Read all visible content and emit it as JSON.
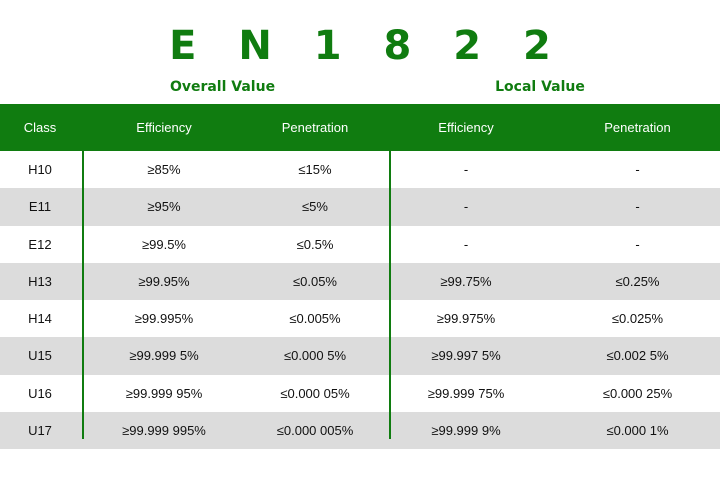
{
  "title": "E N 1 8 2 2",
  "groups": {
    "overall": "Overall Value",
    "local": "Local Value"
  },
  "headers": {
    "class": "Class",
    "overall_efficiency": "Efficiency",
    "overall_penetration": "Penetration",
    "local_efficiency": "Efficiency",
    "local_penetration": "Penetration"
  },
  "rows": [
    {
      "class": "H10",
      "overall_efficiency": "≥85%",
      "overall_penetration": "≤15%",
      "local_efficiency": "-",
      "local_penetration": "-"
    },
    {
      "class": "E11",
      "overall_efficiency": "≥95%",
      "overall_penetration": "≤5%",
      "local_efficiency": "-",
      "local_penetration": "-"
    },
    {
      "class": "E12",
      "overall_efficiency": "≥99.5%",
      "overall_penetration": "≤0.5%",
      "local_efficiency": "-",
      "local_penetration": "-"
    },
    {
      "class": "H13",
      "overall_efficiency": "≥99.95%",
      "overall_penetration": "≤0.05%",
      "local_efficiency": "≥99.75%",
      "local_penetration": "≤0.25%"
    },
    {
      "class": "H14",
      "overall_efficiency": "≥99.995%",
      "overall_penetration": "≤0.005%",
      "local_efficiency": "≥99.975%",
      "local_penetration": "≤0.025%"
    },
    {
      "class": "U15",
      "overall_efficiency": "≥99.999 5%",
      "overall_penetration": "≤0.000 5%",
      "local_efficiency": "≥99.997 5%",
      "local_penetration": "≤0.002 5%"
    },
    {
      "class": "U16",
      "overall_efficiency": "≥99.999 95%",
      "overall_penetration": "≤0.000 05%",
      "local_efficiency": "≥99.999 75%",
      "local_penetration": "≤0.000 25%"
    },
    {
      "class": "U17",
      "overall_efficiency": "≥99.999 995%",
      "overall_penetration": "≤0.000 005%",
      "local_efficiency": "≥99.999 9%",
      "local_penetration": "≤0.000 1%"
    }
  ],
  "colors": {
    "accent_green": "#107c10",
    "row_shade": "#dcdcdc"
  }
}
